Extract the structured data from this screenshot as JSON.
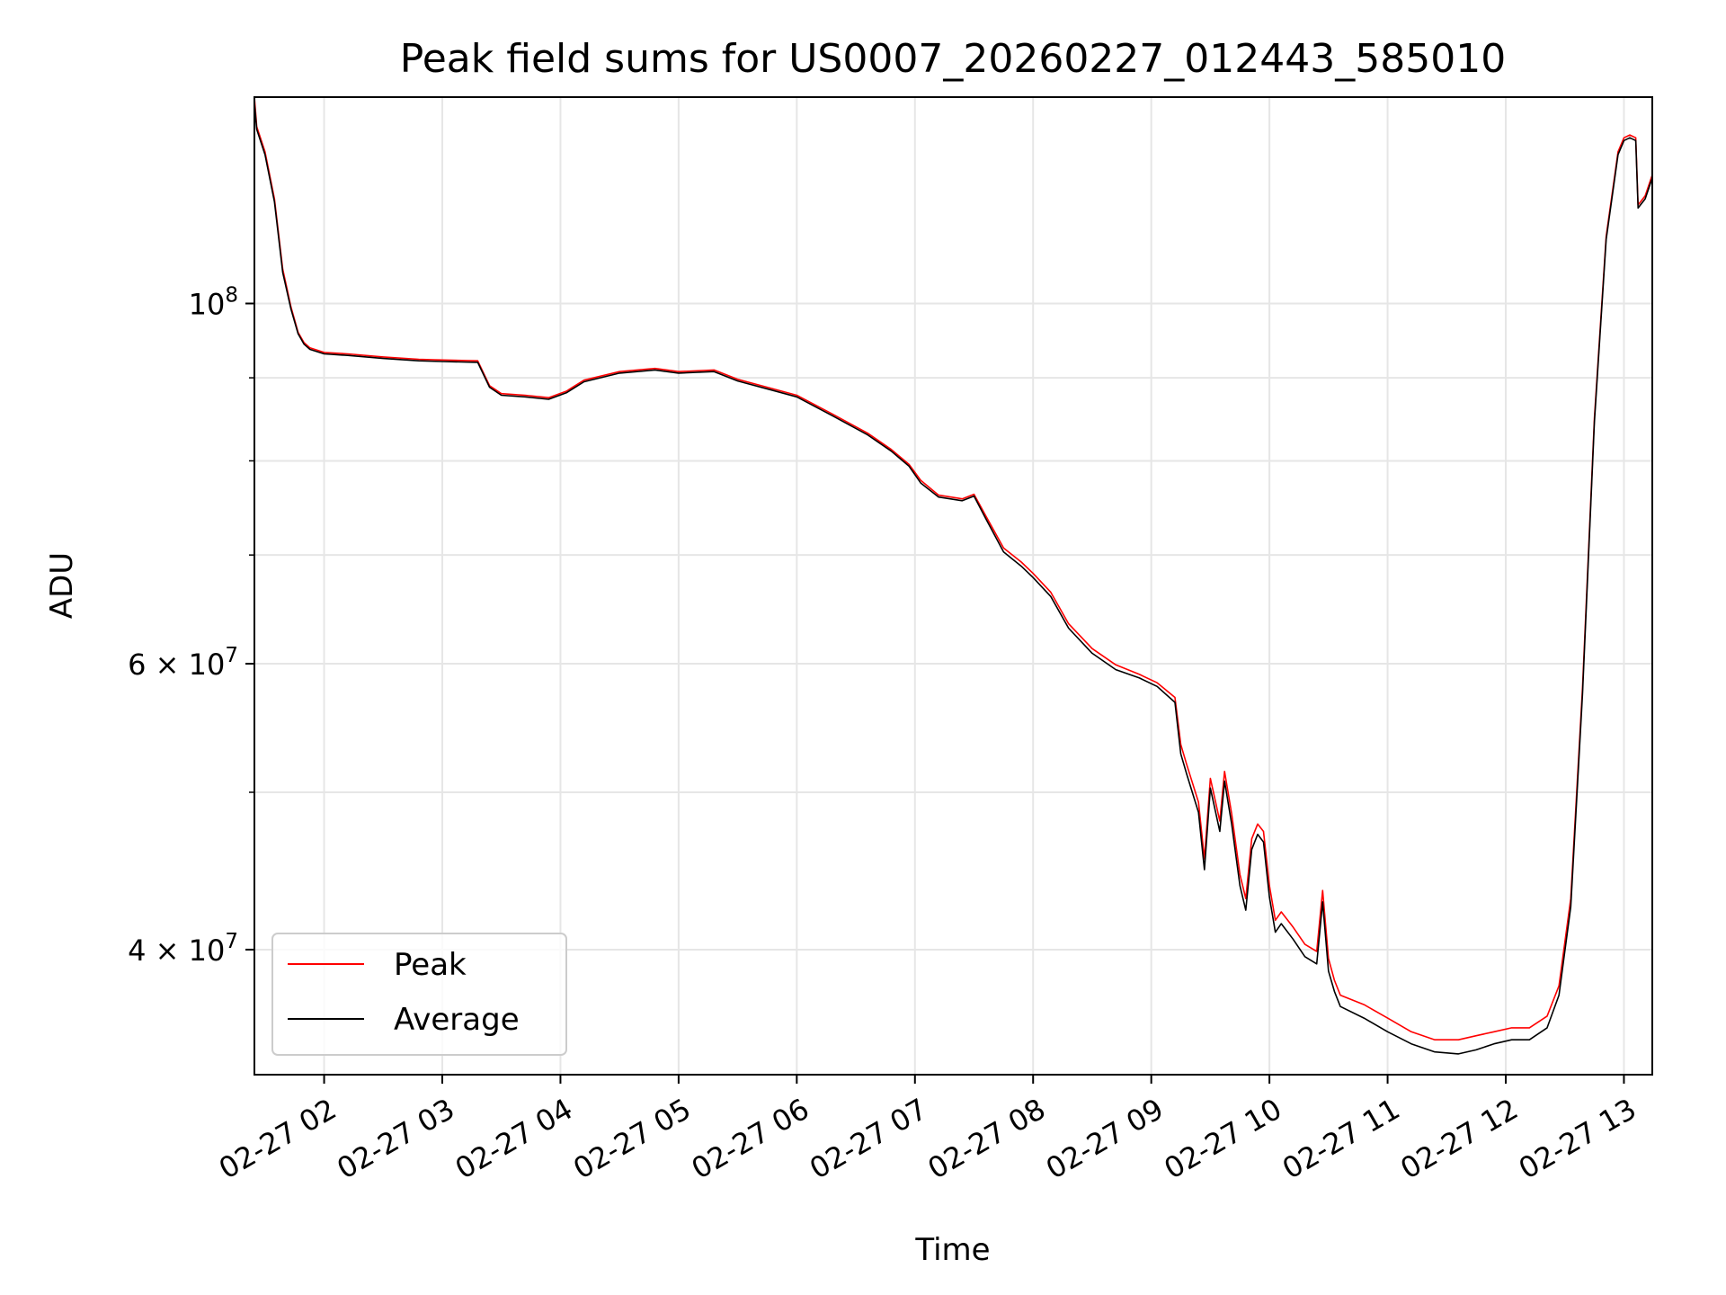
{
  "chart_data": {
    "type": "line",
    "title": "Peak field sums for US0007_20260227_012443_585010",
    "xlabel": "Time",
    "ylabel": "ADU",
    "yscale": "log",
    "xlim": [
      1.41,
      13.24
    ],
    "ylim": [
      33500000,
      134000000
    ],
    "grid": true,
    "x_ticks": [
      {
        "value": 2,
        "label": "02-27 02"
      },
      {
        "value": 3,
        "label": "02-27 03"
      },
      {
        "value": 4,
        "label": "02-27 04"
      },
      {
        "value": 5,
        "label": "02-27 05"
      },
      {
        "value": 6,
        "label": "02-27 06"
      },
      {
        "value": 7,
        "label": "02-27 07"
      },
      {
        "value": 8,
        "label": "02-27 08"
      },
      {
        "value": 9,
        "label": "02-27 09"
      },
      {
        "value": 10,
        "label": "02-27 10"
      },
      {
        "value": 11,
        "label": "02-27 11"
      },
      {
        "value": 12,
        "label": "02-27 12"
      },
      {
        "value": 13,
        "label": "02-27 13"
      }
    ],
    "y_major_ticks": [
      {
        "value": 40000000,
        "mantissa": "4",
        "exponent": "7"
      },
      {
        "value": 60000000,
        "mantissa": "6",
        "exponent": "7"
      },
      {
        "value": 100000000,
        "mantissa": "",
        "exponent": "8"
      }
    ],
    "y_minor_ticks": [
      50000000,
      70000000,
      80000000,
      90000000
    ],
    "legend": {
      "position": "lower-left",
      "entries": [
        {
          "label": "Peak",
          "color": "#ff0000"
        },
        {
          "label": "Average",
          "color": "#000000"
        }
      ]
    },
    "series": [
      {
        "name": "Peak",
        "color": "#ff0000",
        "x": [
          1.41,
          1.43,
          1.5,
          1.58,
          1.65,
          1.72,
          1.78,
          1.83,
          1.88,
          2.0,
          2.2,
          2.5,
          2.8,
          3.0,
          3.3,
          3.4,
          3.5,
          3.7,
          3.9,
          4.05,
          4.2,
          4.5,
          4.8,
          5.0,
          5.3,
          5.5,
          5.8,
          6.0,
          6.3,
          6.6,
          6.8,
          6.95,
          7.05,
          7.2,
          7.4,
          7.5,
          7.6,
          7.75,
          7.9,
          8.0,
          8.15,
          8.3,
          8.5,
          8.7,
          8.9,
          9.05,
          9.2,
          9.25,
          9.3,
          9.4,
          9.45,
          9.5,
          9.58,
          9.62,
          9.68,
          9.75,
          9.8,
          9.85,
          9.9,
          9.95,
          10.0,
          10.05,
          10.1,
          10.2,
          10.3,
          10.4,
          10.45,
          10.5,
          10.55,
          10.6,
          10.8,
          11.0,
          11.2,
          11.4,
          11.6,
          11.75,
          11.9,
          12.05,
          12.2,
          12.35,
          12.45,
          12.55,
          12.65,
          12.75,
          12.85,
          12.95,
          13.0,
          13.05,
          13.1,
          13.12,
          13.18,
          13.24
        ],
        "y": [
          134000000,
          128500000,
          124000000,
          116000000,
          105000000,
          99500000,
          96000000,
          94600000,
          93900000,
          93300000,
          93100000,
          92700000,
          92400000,
          92300000,
          92200000,
          89000000,
          88000000,
          87800000,
          87500000,
          88300000,
          89700000,
          90800000,
          91200000,
          90800000,
          91000000,
          89800000,
          88600000,
          87800000,
          85500000,
          83200000,
          81300000,
          79600000,
          77800000,
          76200000,
          75800000,
          76300000,
          74000000,
          70700000,
          69300000,
          68200000,
          66400000,
          63500000,
          61300000,
          59900000,
          59100000,
          58400000,
          57200000,
          53500000,
          52000000,
          49300000,
          45500000,
          51000000,
          48000000,
          51500000,
          48500000,
          44500000,
          43000000,
          46800000,
          47800000,
          47300000,
          43800000,
          41700000,
          42200000,
          41300000,
          40300000,
          39900000,
          43500000,
          39500000,
          38300000,
          37500000,
          37000000,
          36300000,
          35600000,
          35200000,
          35200000,
          35400000,
          35600000,
          35800000,
          35800000,
          36400000,
          38000000,
          43000000,
          58000000,
          85000000,
          110000000,
          124000000,
          126500000,
          127000000,
          126500000,
          115000000,
          116500000,
          120000000
        ]
      },
      {
        "name": "Average",
        "color": "#000000",
        "x": [
          1.41,
          1.43,
          1.5,
          1.58,
          1.65,
          1.72,
          1.78,
          1.83,
          1.88,
          2.0,
          2.2,
          2.5,
          2.8,
          3.0,
          3.3,
          3.4,
          3.5,
          3.7,
          3.9,
          4.05,
          4.2,
          4.5,
          4.8,
          5.0,
          5.3,
          5.5,
          5.8,
          6.0,
          6.3,
          6.6,
          6.8,
          6.95,
          7.05,
          7.2,
          7.4,
          7.5,
          7.6,
          7.75,
          7.9,
          8.0,
          8.15,
          8.3,
          8.5,
          8.7,
          8.9,
          9.05,
          9.2,
          9.25,
          9.3,
          9.4,
          9.45,
          9.5,
          9.58,
          9.62,
          9.68,
          9.75,
          9.8,
          9.85,
          9.9,
          9.95,
          10.0,
          10.05,
          10.1,
          10.2,
          10.3,
          10.4,
          10.45,
          10.5,
          10.55,
          10.6,
          10.8,
          11.0,
          11.2,
          11.4,
          11.6,
          11.75,
          11.9,
          12.05,
          12.2,
          12.35,
          12.45,
          12.55,
          12.65,
          12.75,
          12.85,
          12.95,
          13.0,
          13.05,
          13.1,
          13.12,
          13.18,
          13.24
        ],
        "y": [
          133000000,
          128000000,
          123500000,
          115500000,
          104500000,
          99200000,
          95800000,
          94400000,
          93700000,
          93100000,
          92900000,
          92500000,
          92200000,
          92100000,
          92000000,
          88800000,
          87800000,
          87600000,
          87300000,
          88100000,
          89500000,
          90600000,
          91000000,
          90600000,
          90800000,
          89600000,
          88400000,
          87600000,
          85300000,
          83000000,
          81100000,
          79400000,
          77500000,
          76000000,
          75600000,
          76100000,
          73700000,
          70300000,
          68900000,
          67800000,
          66000000,
          63100000,
          60900000,
          59500000,
          58800000,
          58100000,
          56800000,
          52800000,
          51300000,
          48600000,
          44800000,
          50300000,
          47300000,
          50800000,
          47800000,
          43800000,
          42300000,
          46100000,
          47100000,
          46600000,
          43100000,
          41000000,
          41500000,
          40600000,
          39600000,
          39200000,
          42800000,
          38800000,
          37700000,
          36900000,
          36300000,
          35600000,
          35000000,
          34600000,
          34500000,
          34700000,
          35000000,
          35200000,
          35200000,
          35800000,
          37500000,
          42500000,
          57500000,
          84500000,
          109500000,
          123500000,
          126000000,
          126500000,
          126000000,
          114500000,
          116000000,
          119500000
        ]
      }
    ]
  }
}
